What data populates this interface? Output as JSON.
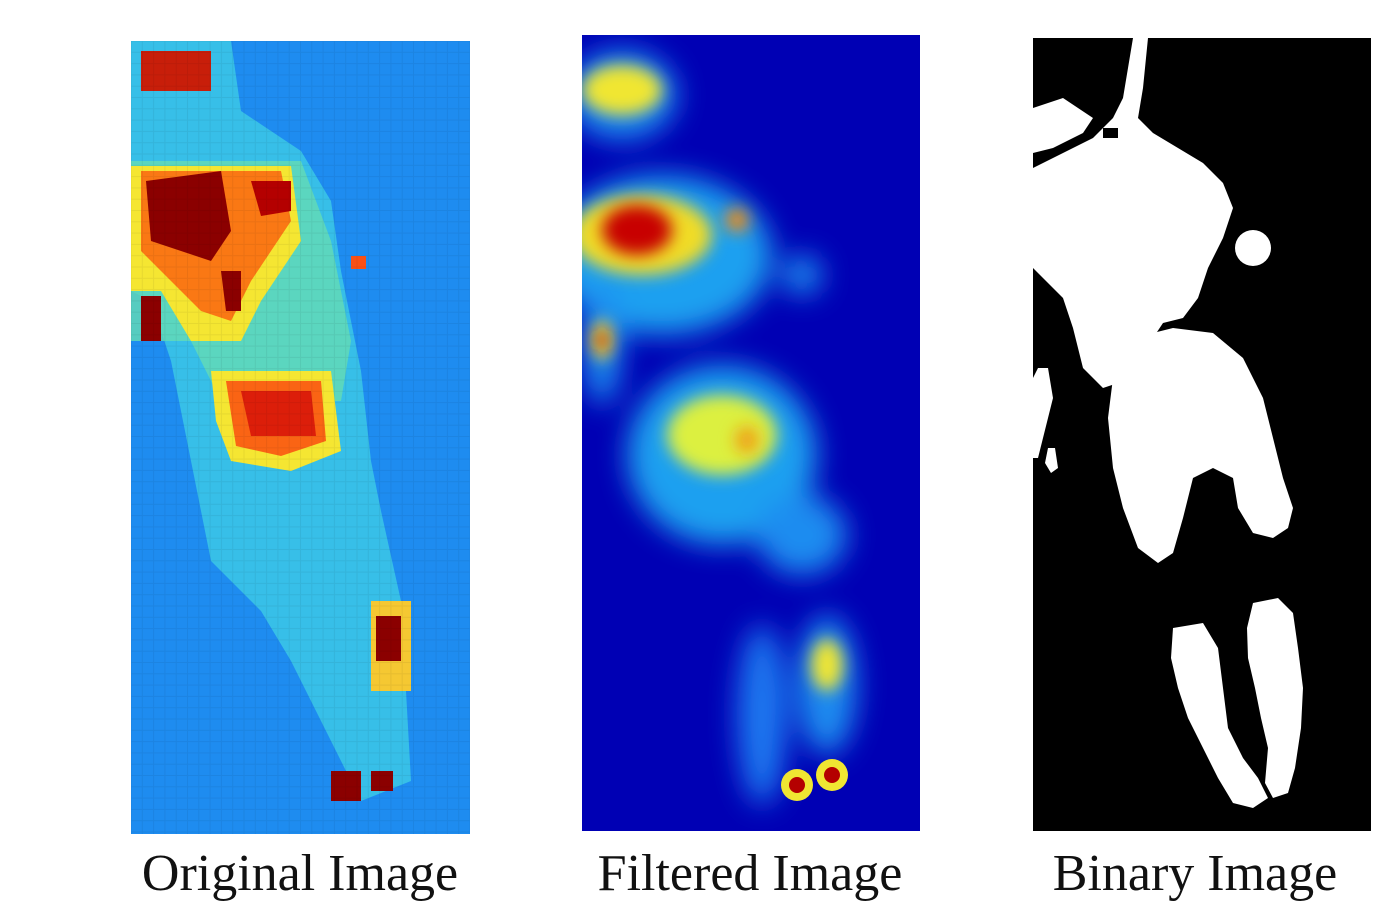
{
  "panels": [
    {
      "caption": "Original Image"
    },
    {
      "caption": "Filtered Image"
    },
    {
      "caption": "Binary Image"
    }
  ],
  "colors": {
    "background": "#ffffff",
    "jet_low": "#1e8cf0",
    "jet_deep": "#0000b4",
    "hot": "#8b0000",
    "binary_bg": "#000000",
    "binary_fg": "#ffffff"
  }
}
